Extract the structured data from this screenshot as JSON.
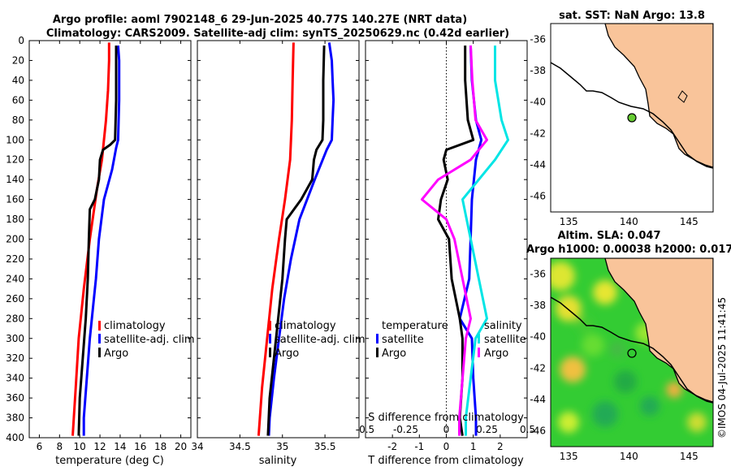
{
  "title": {
    "line1": "Argo profile: aoml 7902148_6 29-Jun-2025 40.77S 140.27E (NRT data)",
    "line2": "Climatology: CARS2009. Satellite-adj clim: synTS_20250629.nc (0.42d earlier)"
  },
  "colors": {
    "climatology": "#ff0000",
    "satellite": "#0000ff",
    "argo": "#000000",
    "sat_salinity": "#00e5e5",
    "argo_salinity": "#ff00ff",
    "land": "#f9c49a"
  },
  "chart_data": [
    {
      "id": "temperature",
      "type": "line",
      "xlabel": "temperature (deg C)",
      "ylabel": "",
      "xlim": [
        5,
        21
      ],
      "ylim": [
        400,
        0
      ],
      "xticks": [
        6,
        8,
        10,
        12,
        14,
        16,
        18,
        20
      ],
      "yticks": [
        0,
        20,
        40,
        60,
        80,
        100,
        120,
        140,
        160,
        180,
        200,
        220,
        240,
        260,
        280,
        300,
        320,
        340,
        360,
        380,
        400
      ],
      "legend": [
        "climatology",
        "satellite-adj. clim",
        "Argo"
      ],
      "series": [
        {
          "name": "climatology",
          "color": "#ff0000",
          "depth": [
            2,
            20,
            50,
            80,
            100,
            120,
            150,
            200,
            250,
            300,
            350,
            398
          ],
          "values": [
            12.9,
            12.9,
            12.8,
            12.6,
            12.4,
            12.2,
            11.7,
            11.0,
            10.4,
            9.9,
            9.6,
            9.3
          ]
        },
        {
          "name": "satellite-adj. clim",
          "color": "#0000ff",
          "depth": [
            5,
            20,
            60,
            100,
            108,
            130,
            160,
            200,
            240,
            280,
            300,
            340,
            380,
            398
          ],
          "values": [
            13.8,
            13.9,
            13.9,
            13.8,
            13.6,
            13.2,
            12.4,
            11.9,
            11.6,
            11.2,
            11.0,
            10.7,
            10.4,
            10.4
          ]
        },
        {
          "name": "Argo",
          "color": "#000000",
          "depth": [
            5,
            20,
            60,
            100,
            105,
            110,
            120,
            140,
            160,
            170,
            200,
            240,
            280,
            320,
            360,
            398
          ],
          "values": [
            13.6,
            13.6,
            13.6,
            13.5,
            13.0,
            12.3,
            12.0,
            11.9,
            11.5,
            11.0,
            10.9,
            10.8,
            10.6,
            10.3,
            10.0,
            9.9
          ]
        }
      ]
    },
    {
      "id": "salinity",
      "type": "line",
      "xlabel": "salinity",
      "ylabel": "",
      "xlim": [
        34.0,
        35.9
      ],
      "ylim": [
        400,
        0
      ],
      "xticks": [
        34,
        34.5,
        35,
        35.5
      ],
      "legend": [
        "climatology",
        "satellite-adj. clim",
        "Argo"
      ],
      "series": [
        {
          "name": "climatology",
          "color": "#ff0000",
          "depth": [
            2,
            40,
            80,
            120,
            160,
            200,
            250,
            300,
            350,
            398
          ],
          "values": [
            35.13,
            35.12,
            35.11,
            35.09,
            35.03,
            34.96,
            34.88,
            34.82,
            34.76,
            34.72
          ]
        },
        {
          "name": "satellite-adj. clim",
          "color": "#0000ff",
          "depth": [
            2,
            20,
            40,
            60,
            80,
            100,
            110,
            140,
            180,
            220,
            260,
            300,
            340,
            380,
            398
          ],
          "values": [
            35.55,
            35.58,
            35.59,
            35.6,
            35.59,
            35.58,
            35.52,
            35.38,
            35.2,
            35.1,
            35.02,
            34.96,
            34.9,
            34.85,
            34.84
          ]
        },
        {
          "name": "Argo",
          "color": "#000000",
          "depth": [
            5,
            40,
            80,
            100,
            110,
            120,
            140,
            160,
            180,
            200,
            240,
            280,
            320,
            360,
            398
          ],
          "values": [
            35.49,
            35.48,
            35.48,
            35.47,
            35.4,
            35.37,
            35.35,
            35.22,
            35.05,
            35.03,
            35.0,
            34.95,
            34.9,
            34.85,
            34.83
          ]
        }
      ]
    },
    {
      "id": "differences",
      "type": "line",
      "xlabel": "T difference from climatology",
      "x2label": "S difference from climatology",
      "xlim": [
        -3,
        3
      ],
      "ylim": [
        400,
        0
      ],
      "xticks": [
        -2,
        -1,
        0,
        1,
        2
      ],
      "x2ticks": [
        -0.5,
        -0.25,
        0,
        0.25,
        0.5
      ],
      "x2ticklabels": [
        "-0.5",
        "-0.25",
        "0",
        "0.25",
        "0.5"
      ],
      "legend_temperature": [
        "temperature",
        "satellite",
        "Argo"
      ],
      "legend_salinity": [
        "salinity",
        "satellite",
        "Argo"
      ],
      "series": [
        {
          "name": "temperature satellite",
          "color": "#0000ff",
          "depth": [
            5,
            40,
            80,
            100,
            110,
            120,
            160,
            200,
            240,
            280,
            300,
            340,
            380,
            398
          ],
          "values": [
            0.9,
            0.95,
            1.1,
            1.3,
            1.2,
            1.1,
            0.95,
            0.9,
            0.85,
            0.5,
            0.95,
            1.0,
            1.1,
            1.1
          ]
        },
        {
          "name": "temperature Argo",
          "color": "#000000",
          "depth": [
            5,
            40,
            80,
            100,
            110,
            120,
            140,
            160,
            180,
            200,
            240,
            280,
            300,
            340,
            380,
            398
          ],
          "values": [
            0.7,
            0.7,
            0.8,
            1.0,
            0.0,
            -0.1,
            0.05,
            -0.2,
            -0.3,
            0.1,
            0.2,
            0.5,
            0.6,
            0.6,
            0.5,
            0.6
          ]
        },
        {
          "name": "salinity satellite",
          "color": "#00e5e5",
          "depth": [
            5,
            40,
            80,
            100,
            120,
            160,
            200,
            240,
            280,
            300,
            340,
            380,
            398
          ],
          "values": [
            0.3,
            0.3,
            0.34,
            0.38,
            0.3,
            0.1,
            0.15,
            0.2,
            0.25,
            0.18,
            0.15,
            0.12,
            0.12
          ]
        },
        {
          "name": "salinity Argo",
          "color": "#ff00ff",
          "depth": [
            5,
            40,
            80,
            100,
            110,
            120,
            140,
            160,
            180,
            200,
            240,
            280,
            300,
            340,
            380,
            398
          ],
          "values": [
            0.15,
            0.16,
            0.18,
            0.25,
            0.2,
            0.15,
            -0.05,
            -0.15,
            0.0,
            0.05,
            0.1,
            0.15,
            0.12,
            0.1,
            0.08,
            0.08
          ]
        }
      ]
    },
    {
      "id": "sst-map",
      "type": "map",
      "title": "sat. SST: NaN Argo: 13.8",
      "xlim": [
        133.5,
        147.0
      ],
      "ylim": [
        -47.0,
        -35.0
      ],
      "xticks": [
        135,
        140,
        145
      ],
      "yticks": [
        -36,
        -38,
        -40,
        -42,
        -44,
        -46
      ],
      "float_position": {
        "lon": 140.27,
        "lat": -40.77
      }
    },
    {
      "id": "sla-map",
      "type": "heatmap",
      "title_line1": "Altim. SLA: 0.047",
      "title_line2": "Argo h1000: 0.00038 h2000: 0.017",
      "xlim": [
        133.5,
        147.0
      ],
      "ylim": [
        -47.0,
        -35.0
      ],
      "xticks": [
        135,
        140,
        145
      ],
      "yticks": [
        -36,
        -38,
        -40,
        -42,
        -44,
        -46
      ],
      "float_position": {
        "lon": 140.27,
        "lat": -40.77
      }
    }
  ],
  "credit": "©IMOS 04-Jul-2025 11:41:45"
}
